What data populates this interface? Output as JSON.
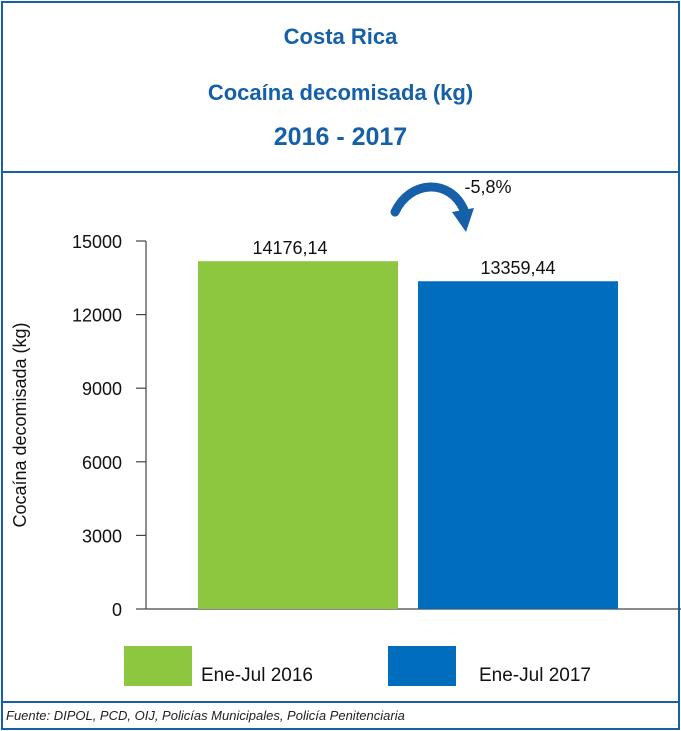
{
  "header": {
    "country": "Costa Rica",
    "title": "Cocaína decomisada (kg)",
    "period": "2016 - 2017"
  },
  "chart_data": {
    "type": "bar",
    "categories": [
      "Ene-Jul 2016",
      "Ene-Jul 2017"
    ],
    "values": [
      14176.14,
      13359.44
    ],
    "value_labels": [
      "14176,14",
      "13359,44"
    ],
    "ylabel": "Cocaína decomisada (kg)",
    "ylim": [
      0,
      15000
    ],
    "yticks": [
      0,
      3000,
      6000,
      9000,
      12000,
      15000
    ],
    "change_label": "-5,8%",
    "grid": false,
    "legend_position": "bottom",
    "colors": [
      "#8dc63f",
      "#006ebd"
    ]
  },
  "legend": {
    "items": [
      {
        "label": "Ene-Jul 2016",
        "color": "#8dc63f"
      },
      {
        "label": "Ene-Jul 2017",
        "color": "#006ebd"
      }
    ]
  },
  "source": "Fuente: DIPOL, PCD, OIJ, Policías Municipales, Policía Penitenciaria",
  "colors": {
    "frame": "#1560a8",
    "title": "#1560a8",
    "arrow": "#1560a8"
  }
}
